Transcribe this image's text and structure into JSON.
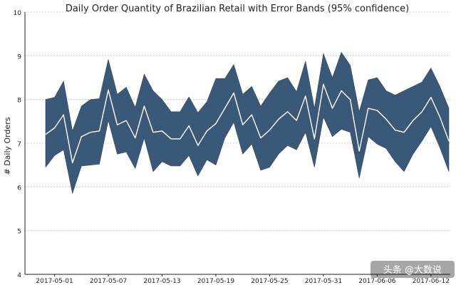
{
  "chart_data": {
    "type": "area",
    "title": "Daily Order Quantity of Brazilian Retail with Error Bands (95% confidence)",
    "xlabel": "",
    "ylabel": "# Daily Orders",
    "ylim": [
      4,
      10
    ],
    "yticks": [
      4,
      5,
      6,
      7,
      8,
      9,
      10
    ],
    "grid": "horizontal dotted",
    "x": [
      "2017-04-30",
      "2017-05-01",
      "2017-05-02",
      "2017-05-03",
      "2017-05-04",
      "2017-05-05",
      "2017-05-06",
      "2017-05-07",
      "2017-05-08",
      "2017-05-09",
      "2017-05-10",
      "2017-05-11",
      "2017-05-12",
      "2017-05-13",
      "2017-05-14",
      "2017-05-15",
      "2017-05-16",
      "2017-05-17",
      "2017-05-18",
      "2017-05-19",
      "2017-05-20",
      "2017-05-21",
      "2017-05-22",
      "2017-05-23",
      "2017-05-24",
      "2017-05-25",
      "2017-05-26",
      "2017-05-27",
      "2017-05-28",
      "2017-05-29",
      "2017-05-30",
      "2017-05-31",
      "2017-06-01",
      "2017-06-02",
      "2017-06-03",
      "2017-06-04",
      "2017-06-05",
      "2017-06-06",
      "2017-06-07",
      "2017-06-08",
      "2017-06-09",
      "2017-06-10",
      "2017-06-11",
      "2017-06-12",
      "2017-06-13",
      "2017-06-14"
    ],
    "x_tick_labels": [
      "2017-05-01",
      "2017-05-07",
      "2017-05-13",
      "2017-05-19",
      "2017-05-25",
      "2017-05-31",
      "2017-06-06",
      "2017-06-12"
    ],
    "series": [
      {
        "role": "mean",
        "color": "#ffffff",
        "values": [
          7.2,
          7.35,
          7.65,
          6.55,
          7.15,
          7.25,
          7.28,
          8.22,
          7.42,
          7.52,
          7.12,
          7.85,
          7.25,
          7.28,
          7.1,
          7.1,
          7.4,
          6.95,
          7.28,
          7.45,
          7.8,
          8.15,
          7.42,
          7.65,
          7.12,
          7.3,
          7.55,
          7.72,
          7.52,
          8.08,
          7.1,
          8.35,
          7.8,
          8.2,
          8.0,
          6.82,
          7.8,
          7.75,
          7.55,
          7.3,
          7.25,
          7.52,
          7.72,
          8.05,
          7.6,
          7.05
        ]
      },
      {
        "role": "upper_95",
        "color": "#3a5878",
        "values": [
          8.0,
          8.05,
          8.42,
          7.28,
          7.85,
          8.0,
          8.02,
          8.92,
          8.12,
          8.28,
          7.82,
          8.58,
          8.2,
          8.0,
          7.72,
          7.72,
          8.06,
          7.7,
          7.95,
          8.48,
          8.48,
          8.8,
          8.12,
          8.3,
          7.85,
          8.15,
          8.42,
          8.5,
          8.18,
          8.88,
          7.8,
          9.05,
          8.5,
          9.08,
          8.78,
          7.72,
          8.45,
          8.5,
          8.2,
          8.1,
          8.2,
          8.3,
          8.4,
          8.72,
          8.3,
          7.8
        ]
      },
      {
        "role": "lower_95",
        "color": "#3a5878",
        "values": [
          6.45,
          6.72,
          6.85,
          5.85,
          6.48,
          6.5,
          6.52,
          7.52,
          6.75,
          6.8,
          6.42,
          7.12,
          6.35,
          6.58,
          6.48,
          6.48,
          6.72,
          6.25,
          6.62,
          6.5,
          7.12,
          7.48,
          6.75,
          6.98,
          6.38,
          6.45,
          6.75,
          6.95,
          6.85,
          7.25,
          6.45,
          7.6,
          7.15,
          7.32,
          7.25,
          6.2,
          7.15,
          6.98,
          6.88,
          6.58,
          6.35,
          6.75,
          7.05,
          7.38,
          6.9,
          6.35
        ]
      }
    ]
  },
  "watermark": "头条 @大数说"
}
